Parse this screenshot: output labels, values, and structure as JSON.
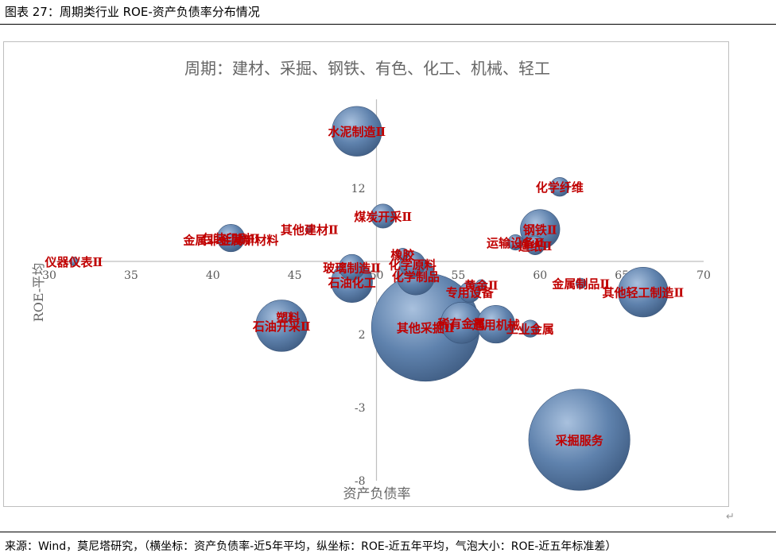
{
  "caption": "图表 27：周期类行业 ROE-资产负债率分布情况",
  "source": "来源：Wind，莫尼塔研究，（横坐标：资产负债率-近5年平均，纵坐标：ROE-近五年平均，气泡大小：ROE-近五年标准差）",
  "chart_data": {
    "type": "scatter",
    "title": "周期：建材、采掘、钢铁、有色、化工、机械、轻工",
    "xlabel": "资产负债率",
    "ylabel": "ROE-平均",
    "xlim": [
      30,
      70
    ],
    "ylim": [
      -8,
      17
    ],
    "x_ticks": [
      "30",
      "35",
      "40",
      "45",
      "50",
      "55",
      "60",
      "65",
      "70"
    ],
    "y_ticks": [
      "17",
      "12",
      "2",
      "-3",
      "-8"
    ],
    "x_axis_crosses_y": 7,
    "y_axis_crosses_x": 50,
    "grid": false,
    "legend": "none",
    "bubble_color": "#4f6f95",
    "label_color": "#c00000",
    "points": [
      {
        "label": "水泥制造Ⅱ",
        "x": 48.8,
        "y": 15.9,
        "size": 2.9
      },
      {
        "label": "化学纤维",
        "x": 61.2,
        "y": 12.1,
        "size": 1.1
      },
      {
        "label": "钢铁Ⅱ",
        "x": 60.0,
        "y": 9.2,
        "size": 2.3
      },
      {
        "label": "运输设备Ⅱ",
        "x": 58.5,
        "y": 8.3,
        "size": 0.9
      },
      {
        "label": "造纸Ⅱ",
        "x": 59.7,
        "y": 8.1,
        "size": 1.1
      },
      {
        "label": "包装印刷Ⅱ",
        "x": 41.1,
        "y": 8.6,
        "size": 1.6
      },
      {
        "label": "金属非金属新材料",
        "x": 41.1,
        "y": 8.5,
        "size": 0.6
      },
      {
        "label": "其他建材Ⅱ",
        "x": 45.9,
        "y": 9.2,
        "size": 0.4
      },
      {
        "label": "煤炭开采Ⅱ",
        "x": 50.4,
        "y": 10.1,
        "size": 1.4
      },
      {
        "label": "仪器仪表Ⅱ",
        "x": 31.5,
        "y": 7.0,
        "size": 0.5
      },
      {
        "label": "玻璃制造Ⅱ",
        "x": 48.5,
        "y": 6.6,
        "size": 1.5
      },
      {
        "label": "石油化工",
        "x": 48.5,
        "y": 5.6,
        "size": 2.4
      },
      {
        "label": "橡胶",
        "x": 51.6,
        "y": 7.5,
        "size": 0.7
      },
      {
        "label": "化学原料",
        "x": 52.2,
        "y": 6.8,
        "size": 1.5
      },
      {
        "label": "化学制品",
        "x": 52.4,
        "y": 6.0,
        "size": 2.2
      },
      {
        "label": "黄金Ⅱ",
        "x": 56.4,
        "y": 5.4,
        "size": 0.6
      },
      {
        "label": "专用设备",
        "x": 55.7,
        "y": 4.9,
        "size": 1.2
      },
      {
        "label": "金属制品Ⅱ",
        "x": 62.5,
        "y": 5.5,
        "size": 0.6
      },
      {
        "label": "其他轻工制造Ⅱ",
        "x": 66.3,
        "y": 4.9,
        "size": 2.9
      },
      {
        "label": "石油开采Ⅱ",
        "x": 44.2,
        "y": 2.6,
        "size": 3.0
      },
      {
        "label": "塑料",
        "x": 44.6,
        "y": 3.2,
        "size": 0.5
      },
      {
        "label": "其他采掘Ⅱ",
        "x": 53.0,
        "y": 2.5,
        "size": 6.3
      },
      {
        "label": "稀有金属",
        "x": 55.2,
        "y": 2.8,
        "size": 2.4
      },
      {
        "label": "通用机械",
        "x": 57.3,
        "y": 2.7,
        "size": 2.2
      },
      {
        "label": "工业金属",
        "x": 59.4,
        "y": 2.4,
        "size": 1.0
      },
      {
        "label": "采掘服务",
        "x": 62.4,
        "y": -5.2,
        "size": 5.9
      }
    ]
  }
}
